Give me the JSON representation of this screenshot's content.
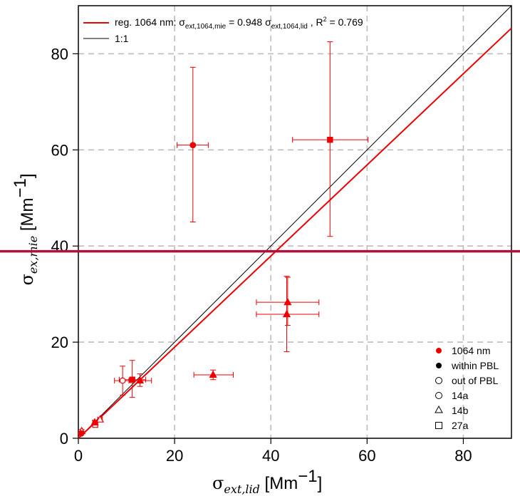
{
  "chart_data": {
    "type": "scatter",
    "xlabel": "σext,lid [Mm⁻¹]",
    "ylabel": "σex,mie [Mm⁻¹]",
    "xlim": [
      0,
      90
    ],
    "ylim": [
      0,
      90
    ],
    "xticks": [
      "0",
      "20",
      "40",
      "60",
      "80"
    ],
    "yticks": [
      "0",
      "20",
      "40",
      "60",
      "80"
    ],
    "grid": true,
    "colors": {
      "series": "#ee0000",
      "one_to_one": "#000000",
      "marker_line": "#b0103a"
    },
    "horizontal_marker_line": {
      "y": 38.9
    },
    "regression": {
      "slope": 0.948,
      "intercept": 0,
      "label_prefix": "reg. 1064 nm: ",
      "equation": "σext,1064,mie = 0.948 σext,1064,lid",
      "r2_label": ", R² = 0.769"
    },
    "one_to_one_label": "1:1",
    "legend_top": [
      "reg. 1064 nm: σext,1064,mie = 0.948 σext,1064,lid , R² = 0.769",
      "1:1"
    ],
    "legend_bottom": [
      {
        "symbol": "filled-circle",
        "label": "1064 nm",
        "color": "#ee0000"
      },
      {
        "symbol": "filled-circle",
        "label": "within PBL",
        "color": "#000000"
      },
      {
        "symbol": "open-circle",
        "label": "out of PBL",
        "color": "#000000"
      },
      {
        "symbol": "open-circle",
        "label": "14a",
        "color": "#000000"
      },
      {
        "symbol": "open-triangle",
        "label": "14b",
        "color": "#000000"
      },
      {
        "symbol": "open-square",
        "label": "27a",
        "color": "#000000"
      }
    ],
    "points": [
      {
        "x": 23.8,
        "y": 61.0,
        "xerr": [
          20.5,
          27.0
        ],
        "yerr": [
          45.0,
          77.2
        ],
        "shape": "circle",
        "filled": true
      },
      {
        "x": 52.3,
        "y": 62.1,
        "xerr": [
          44.5,
          60.2
        ],
        "yerr": [
          42.0,
          82.5
        ],
        "shape": "square",
        "filled": true
      },
      {
        "x": 43.5,
        "y": 28.3,
        "xerr": [
          37.0,
          50.0
        ],
        "yerr": [
          23.5,
          33.5
        ],
        "shape": "triangle",
        "filled": true
      },
      {
        "x": 43.3,
        "y": 25.8,
        "xerr": [
          37.0,
          50.0
        ],
        "yerr": [
          18.0,
          33.7
        ],
        "shape": "triangle",
        "filled": true
      },
      {
        "x": 28.0,
        "y": 13.2,
        "xerr": [
          24.0,
          32.2
        ],
        "yerr": [
          12.2,
          14.2
        ],
        "shape": "triangle",
        "filled": true
      },
      {
        "x": 11.2,
        "y": 12.2,
        "xerr": [
          8.5,
          14.0
        ],
        "yerr": [
          8.5,
          16.2
        ],
        "shape": "square",
        "filled": true
      },
      {
        "x": 12.8,
        "y": 12.0,
        "xerr": [
          10.5,
          15.2
        ],
        "yerr": [
          10.8,
          13.4
        ],
        "shape": "triangle",
        "filled": true
      },
      {
        "x": 9.2,
        "y": 12.0,
        "xerr": [
          7.5,
          10.8
        ],
        "yerr": [
          9.0,
          15.0
        ],
        "shape": "circle",
        "filled": false
      },
      {
        "x": 3.5,
        "y": 2.8,
        "xerr": [
          3.0,
          4.0
        ],
        "yerr": [
          2.3,
          3.3
        ],
        "shape": "square",
        "filled": false
      },
      {
        "x": 3.4,
        "y": 3.3,
        "xerr": [
          3.0,
          3.8
        ],
        "yerr": [
          2.9,
          3.7
        ],
        "shape": "triangle",
        "filled": true
      },
      {
        "x": 4.5,
        "y": 3.9,
        "xerr": [
          4.0,
          5.0
        ],
        "yerr": [
          3.5,
          4.3
        ],
        "shape": "triangle",
        "filled": false
      },
      {
        "x": 0.7,
        "y": 1.5,
        "xerr": [
          0.5,
          0.9
        ],
        "yerr": [
          1.2,
          1.8
        ],
        "shape": "triangle",
        "filled": false
      },
      {
        "x": 0.6,
        "y": 1.0,
        "xerr": [
          0.4,
          0.8
        ],
        "yerr": [
          0.8,
          1.2
        ],
        "shape": "circle",
        "filled": true
      }
    ]
  }
}
